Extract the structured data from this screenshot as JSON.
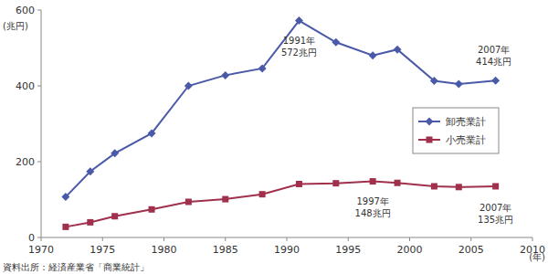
{
  "chart_data": {
    "type": "line",
    "y_label": "(兆円)",
    "x_label": "(年)",
    "source": "資料出所：経済産業省「商業統計」",
    "x": [
      1972,
      1974,
      1976,
      1979,
      1982,
      1985,
      1988,
      1991,
      1994,
      1997,
      1999,
      2002,
      2004,
      2007
    ],
    "series": [
      {
        "name": "卸売業計",
        "color": "#4a5aa8",
        "marker": "diamond",
        "line_style": "solid",
        "values": [
          107,
          174,
          222,
          275,
          400,
          428,
          446,
          572,
          515,
          480,
          496,
          413,
          405,
          414
        ]
      },
      {
        "name": "小売業計",
        "color": "#a0304c",
        "marker": "square",
        "line_style": "solid",
        "values": [
          28,
          40,
          56,
          74,
          94,
          101,
          114,
          141,
          143,
          148,
          144,
          135,
          133,
          135
        ]
      }
    ],
    "annotations": [
      {
        "lines": [
          "1991年",
          "572兆円"
        ],
        "x": 1991,
        "y": 572
      },
      {
        "lines": [
          "2007年",
          "414兆円"
        ],
        "x": 2007,
        "y": 414
      },
      {
        "lines": [
          "1997年",
          "148兆円"
        ],
        "x": 1997,
        "y": 148
      },
      {
        "lines": [
          "2007年",
          "135兆円"
        ],
        "x": 2007,
        "y": 135
      }
    ],
    "xlim": [
      1970,
      2010
    ],
    "xticks": [
      1970,
      1975,
      1980,
      1985,
      1990,
      1995,
      2000,
      2005,
      2010
    ],
    "ylim": [
      0,
      600
    ],
    "yticks": [
      0,
      200,
      400,
      600
    ],
    "grid": false,
    "legend": "right"
  }
}
